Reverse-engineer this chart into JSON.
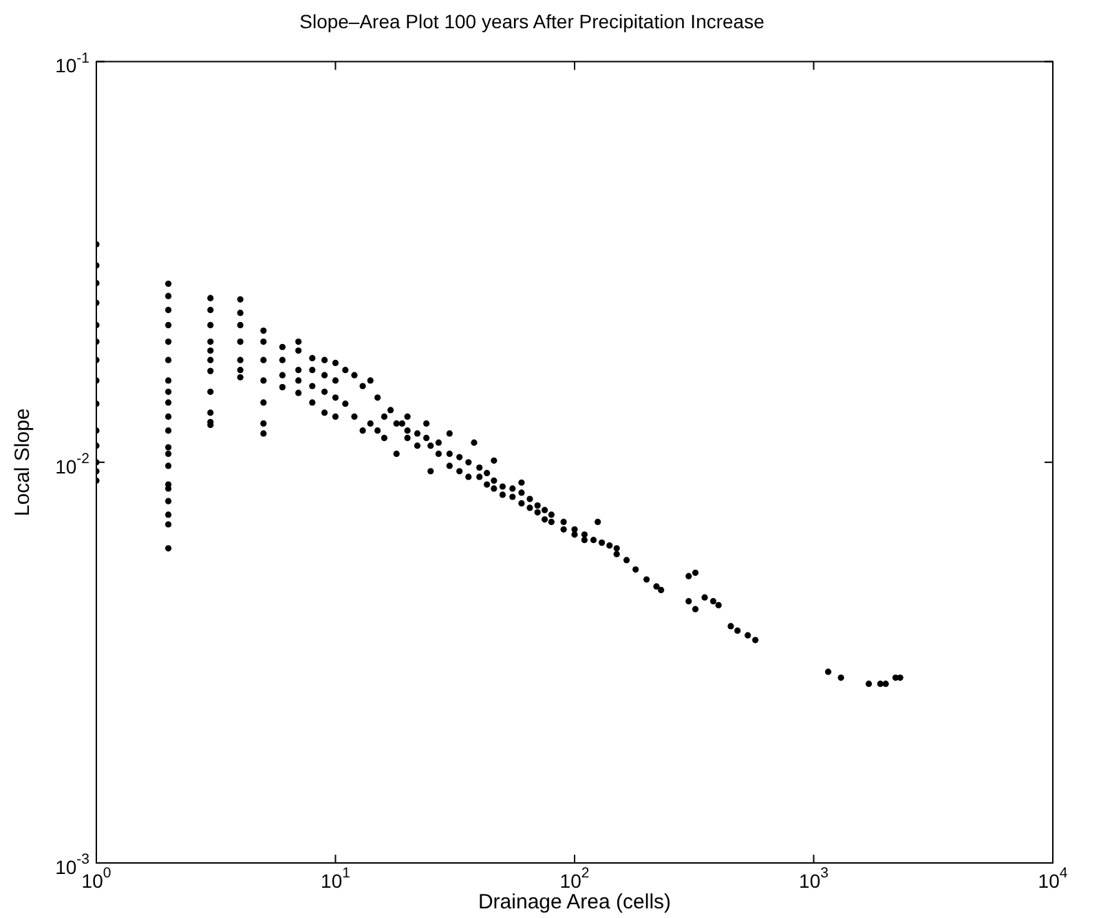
{
  "chart_data": {
    "type": "scatter",
    "title": "Slope–Area Plot 100 years After Precipitation Increase",
    "xlabel": "Drainage Area (cells)",
    "ylabel": "Local Slope",
    "log": "xy",
    "grid": false,
    "legend": false,
    "marker": "circle",
    "xlim": [
      1,
      10000
    ],
    "ylim": [
      0.001,
      0.1
    ],
    "xticks": [
      {
        "value": 1,
        "label": "10$^{0}$"
      },
      {
        "value": 10,
        "label": "10$^{1}$"
      },
      {
        "value": 100,
        "label": "10$^{2}$"
      },
      {
        "value": 1000,
        "label": "10$^{3}$"
      },
      {
        "value": 10000,
        "label": "10$^{4}$"
      }
    ],
    "yticks": [
      {
        "value": 0.001,
        "label": "10$^{-3}$"
      },
      {
        "value": 0.01,
        "label": "10$^{-2}$"
      },
      {
        "value": 0.1,
        "label": "10$^{-1}$"
      }
    ],
    "series": [
      {
        "color": "#000000",
        "x": [
          1,
          1,
          1,
          1,
          1,
          1,
          1,
          1,
          1,
          1,
          1,
          1,
          1,
          1,
          2,
          2,
          2,
          2,
          2,
          2,
          2,
          2,
          2,
          2,
          2,
          2,
          2,
          2,
          2,
          2,
          2,
          2,
          2,
          2,
          3,
          3,
          3,
          3,
          3,
          3,
          3,
          3,
          3,
          3,
          3,
          4,
          4,
          4,
          4,
          4,
          4,
          4,
          5,
          5,
          5,
          5,
          5,
          5,
          5,
          6,
          6,
          6,
          6,
          7,
          7,
          7,
          7,
          7,
          8,
          8,
          8,
          8,
          9,
          9,
          9,
          9,
          10,
          10,
          10,
          10,
          11,
          11,
          12,
          12,
          13,
          13,
          14,
          14,
          15,
          15,
          16,
          16,
          17,
          18,
          18,
          19,
          20,
          20,
          20,
          22,
          22,
          24,
          24,
          25,
          25,
          27,
          27,
          30,
          30,
          30,
          33,
          33,
          36,
          36,
          38,
          40,
          40,
          43,
          43,
          46,
          46,
          46,
          50,
          50,
          55,
          55,
          60,
          60,
          60,
          65,
          65,
          70,
          70,
          75,
          75,
          80,
          80,
          90,
          90,
          100,
          100,
          110,
          110,
          120,
          125,
          130,
          140,
          150,
          150,
          165,
          180,
          200,
          220,
          230,
          300,
          300,
          320,
          320,
          350,
          380,
          400,
          450,
          480,
          530,
          570,
          1150,
          1300,
          1700,
          1900,
          2000,
          2200,
          2300
        ],
        "values": [
          0.035,
          0.031,
          0.028,
          0.025,
          0.022,
          0.02,
          0.018,
          0.016,
          0.014,
          0.012,
          0.011,
          0.01,
          0.0095,
          0.009,
          0.0279,
          0.026,
          0.024,
          0.022,
          0.02,
          0.018,
          0.016,
          0.015,
          0.0141,
          0.013,
          0.012,
          0.0109,
          0.0105,
          0.0098,
          0.0088,
          0.0086,
          0.008,
          0.0074,
          0.007,
          0.0061,
          0.0257,
          0.024,
          0.022,
          0.02,
          0.019,
          0.018,
          0.0169,
          0.015,
          0.0133,
          0.0126,
          0.0124,
          0.0255,
          0.0236,
          0.022,
          0.02,
          0.018,
          0.017,
          0.0163,
          0.0213,
          0.02,
          0.018,
          0.016,
          0.0141,
          0.0125,
          0.0118,
          0.0194,
          0.018,
          0.0165,
          0.0154,
          0.02,
          0.019,
          0.017,
          0.016,
          0.0149,
          0.0182,
          0.017,
          0.0155,
          0.0141,
          0.018,
          0.0165,
          0.015,
          0.0133,
          0.0177,
          0.016,
          0.0145,
          0.013,
          0.017,
          0.014,
          0.0165,
          0.013,
          0.0155,
          0.012,
          0.016,
          0.0125,
          0.0145,
          0.012,
          0.013,
          0.0115,
          0.0135,
          0.0125,
          0.0105,
          0.0125,
          0.013,
          0.012,
          0.0115,
          0.0118,
          0.011,
          0.0115,
          0.0125,
          0.011,
          0.0095,
          0.0112,
          0.0105,
          0.0105,
          0.0098,
          0.0118,
          0.0103,
          0.0095,
          0.01,
          0.0092,
          0.0112,
          0.0097,
          0.0092,
          0.0094,
          0.0088,
          0.009,
          0.0086,
          0.0101,
          0.0087,
          0.0083,
          0.0086,
          0.0082,
          0.0084,
          0.0079,
          0.0089,
          0.0081,
          0.0077,
          0.0078,
          0.0075,
          0.0076,
          0.0072,
          0.0074,
          0.0071,
          0.0071,
          0.0068,
          0.0068,
          0.0066,
          0.0066,
          0.0064,
          0.0064,
          0.0071,
          0.0063,
          0.0062,
          0.0059,
          0.0061,
          0.0057,
          0.0054,
          0.0051,
          0.0049,
          0.0048,
          0.0052,
          0.0045,
          0.0053,
          0.0043,
          0.0046,
          0.0045,
          0.0044,
          0.0039,
          0.0038,
          0.0037,
          0.0036,
          0.003,
          0.0029,
          0.0028,
          0.0028,
          0.0028,
          0.0029,
          0.0029
        ]
      }
    ]
  }
}
